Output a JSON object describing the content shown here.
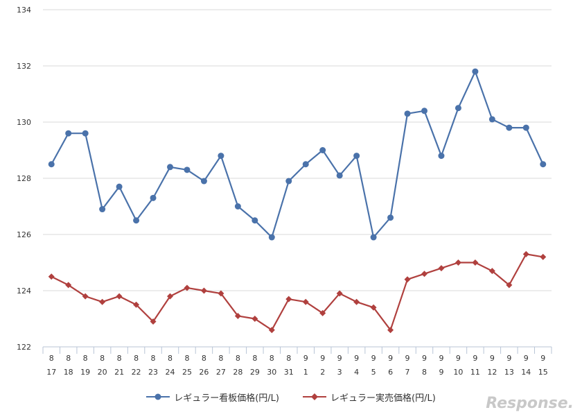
{
  "chart_data": {
    "type": "line",
    "x_month": [
      "8",
      "8",
      "8",
      "8",
      "8",
      "8",
      "8",
      "8",
      "8",
      "8",
      "8",
      "8",
      "8",
      "8",
      "8",
      "9",
      "9",
      "9",
      "9",
      "9",
      "9",
      "9",
      "9",
      "9",
      "9",
      "9",
      "9",
      "9",
      "9",
      "9"
    ],
    "x_day": [
      "17",
      "18",
      "19",
      "20",
      "21",
      "22",
      "23",
      "24",
      "25",
      "26",
      "27",
      "28",
      "29",
      "30",
      "31",
      "1",
      "2",
      "3",
      "4",
      "5",
      "6",
      "7",
      "8",
      "9",
      "10",
      "11",
      "12",
      "13",
      "14",
      "15"
    ],
    "ylim": [
      122,
      134
    ],
    "yticks": [
      "122",
      "124",
      "126",
      "128",
      "130",
      "132",
      "134"
    ],
    "series": [
      {
        "name": "レギュラー看板価格(円/L)",
        "color": "#4a72aa",
        "marker": "circle",
        "values": [
          128.5,
          129.6,
          129.6,
          126.9,
          127.7,
          126.5,
          127.3,
          128.4,
          128.3,
          127.9,
          128.8,
          127.0,
          126.5,
          125.9,
          127.9,
          128.5,
          129.0,
          128.1,
          128.8,
          125.9,
          126.6,
          130.3,
          130.4,
          128.8,
          130.5,
          131.8,
          130.1,
          129.8,
          129.8,
          128.5
        ]
      },
      {
        "name": "レギュラー実売価格(円/L)",
        "color": "#b0403e",
        "marker": "diamond",
        "values": [
          124.5,
          124.2,
          123.8,
          123.6,
          123.8,
          123.5,
          122.9,
          123.8,
          124.1,
          124.0,
          123.9,
          123.1,
          123.0,
          122.6,
          123.7,
          123.6,
          123.2,
          123.9,
          123.6,
          123.4,
          122.6,
          124.4,
          124.6,
          124.8,
          125.0,
          125.0,
          124.7,
          124.2,
          125.3,
          125.2
        ]
      }
    ],
    "grid": true,
    "legend_position": "bottom"
  },
  "watermark": "Response."
}
